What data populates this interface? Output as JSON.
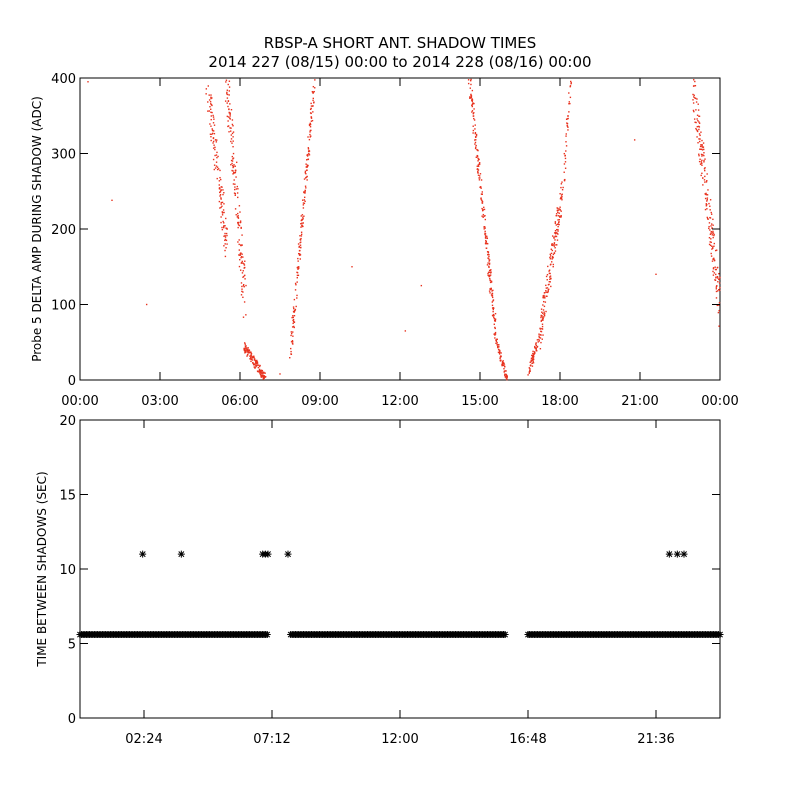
{
  "chart_data": [
    {
      "type": "scatter",
      "title": "RBSP-A SHORT ANT. SHADOW TIMES",
      "subtitle": "2014 227 (08/15) 00:00 to 2014 228 (08/16) 00:00",
      "xlabel": "",
      "ylabel": "Probe 5 DELTA AMP DURING SHADOW (ADC)",
      "xlim": [
        0,
        24
      ],
      "ylim": [
        0,
        400
      ],
      "x_unit": "hours",
      "x_tick_labels": [
        "00:00",
        "03:00",
        "06:00",
        "09:00",
        "12:00",
        "15:00",
        "18:00",
        "21:00",
        "00:00"
      ],
      "x_ticks": [
        0,
        3,
        6,
        9,
        12,
        15,
        18,
        21,
        24
      ],
      "y_ticks": [
        0,
        100,
        200,
        300,
        400
      ],
      "y_tick_labels": [
        "0",
        "100",
        "200",
        "300",
        "400"
      ],
      "color": "#e8321e",
      "marker": "dot",
      "segments": [
        {
          "x0": 4.75,
          "x1": 5.5,
          "y0": 400,
          "y1": 180,
          "n": 140,
          "spread": 60
        },
        {
          "x0": 5.5,
          "x1": 6.2,
          "y0": 400,
          "y1": 100,
          "n": 160,
          "spread": 70
        },
        {
          "x0": 6.15,
          "x1": 6.95,
          "y0": 45,
          "y1": 2,
          "n": 140,
          "spread": 12
        },
        {
          "x0": 7.9,
          "x1": 8.8,
          "y0": 35,
          "y1": 400,
          "n": 190,
          "spread": 22
        },
        {
          "x0": 14.6,
          "x1": 15.6,
          "y0": 400,
          "y1": 60,
          "n": 220,
          "spread": 25
        },
        {
          "x0": 15.55,
          "x1": 16.0,
          "y0": 60,
          "y1": 2,
          "n": 70,
          "spread": 6
        },
        {
          "x0": 16.8,
          "x1": 17.25,
          "y0": 8,
          "y1": 60,
          "n": 60,
          "spread": 10
        },
        {
          "x0": 17.25,
          "x1": 18.1,
          "y0": 60,
          "y1": 250,
          "n": 170,
          "spread": 40
        },
        {
          "x0": 18.1,
          "x1": 18.4,
          "y0": 250,
          "y1": 390,
          "n": 40,
          "spread": 20
        },
        {
          "x0": 23.0,
          "x1": 24.0,
          "y0": 390,
          "y1": 100,
          "n": 200,
          "spread": 60
        }
      ],
      "outliers": [
        {
          "x": 0.3,
          "y": 395
        },
        {
          "x": 1.2,
          "y": 238
        },
        {
          "x": 2.5,
          "y": 100
        },
        {
          "x": 10.2,
          "y": 150
        },
        {
          "x": 12.2,
          "y": 65
        },
        {
          "x": 12.8,
          "y": 125
        },
        {
          "x": 20.8,
          "y": 318
        },
        {
          "x": 21.6,
          "y": 140
        },
        {
          "x": 7.5,
          "y": 8
        }
      ]
    },
    {
      "type": "scatter",
      "xlabel": "",
      "ylabel": "TIME BETWEEN SHADOWS (SEC)",
      "xlim": [
        0,
        24
      ],
      "ylim": [
        0,
        20
      ],
      "x_unit": "hours",
      "x_ticks": [
        2.4,
        7.2,
        12.0,
        16.8,
        21.6
      ],
      "x_tick_labels": [
        "02:24",
        "07:12",
        "12:00",
        "16:48",
        "21:36"
      ],
      "y_ticks": [
        0,
        5,
        10,
        15,
        20
      ],
      "y_tick_labels": [
        "0",
        "5",
        "10",
        "15",
        "20"
      ],
      "color": "#000000",
      "marker": "asterisk",
      "baseline_value": 5.6,
      "baseline_ranges": [
        [
          0.0,
          7.05
        ],
        [
          7.9,
          15.95
        ],
        [
          16.8,
          24.0
        ]
      ],
      "points_y11": [
        2.35,
        3.8,
        6.85,
        6.95,
        7.05,
        7.8,
        22.1,
        22.4,
        22.65
      ]
    }
  ]
}
